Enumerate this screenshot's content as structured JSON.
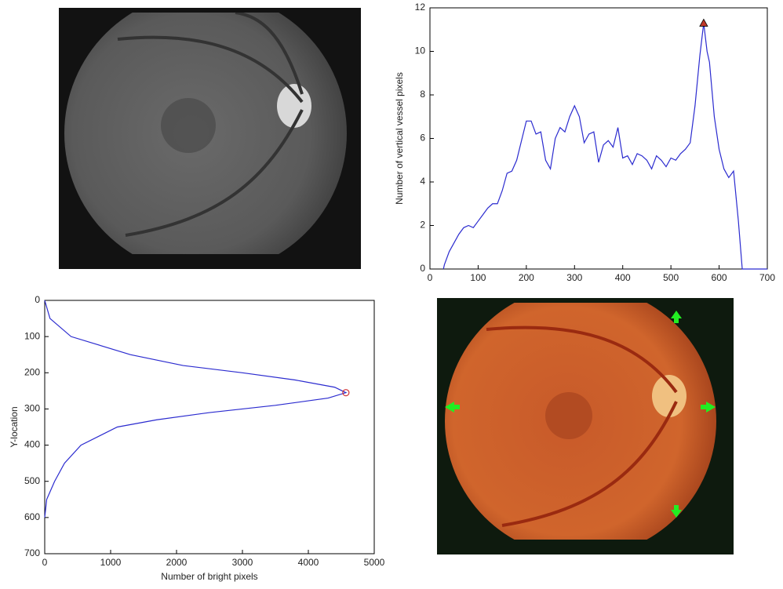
{
  "chart_data": [
    {
      "type": "line",
      "y_label": "Number of vertical vessel pixels",
      "xlim": [
        0,
        700
      ],
      "xticks": [
        0,
        100,
        200,
        300,
        400,
        500,
        600,
        700
      ],
      "ylim": [
        0,
        12
      ],
      "yticks": [
        0,
        2,
        4,
        6,
        8,
        10,
        12
      ],
      "series": [
        {
          "color": "#2b2bcf",
          "x": [
            28,
            30,
            40,
            50,
            60,
            70,
            80,
            90,
            100,
            110,
            120,
            130,
            140,
            150,
            160,
            170,
            180,
            190,
            200,
            210,
            220,
            230,
            240,
            250,
            260,
            270,
            280,
            290,
            300,
            310,
            320,
            330,
            340,
            350,
            360,
            370,
            380,
            390,
            400,
            410,
            420,
            430,
            440,
            450,
            460,
            470,
            480,
            490,
            500,
            510,
            520,
            530,
            540,
            550,
            560,
            568,
            575,
            580,
            590,
            600,
            610,
            620,
            630,
            640,
            648,
            660,
            700
          ],
          "values": [
            0,
            0.2,
            0.8,
            1.2,
            1.6,
            1.9,
            2.0,
            1.9,
            2.2,
            2.5,
            2.8,
            3.0,
            3.0,
            3.6,
            4.4,
            4.5,
            5.0,
            5.9,
            6.8,
            6.8,
            6.2,
            6.3,
            5.0,
            4.6,
            6.0,
            6.5,
            6.3,
            7.0,
            7.5,
            7.0,
            5.8,
            6.2,
            6.3,
            4.9,
            5.7,
            5.9,
            5.6,
            6.5,
            5.1,
            5.2,
            4.8,
            5.3,
            5.2,
            5.0,
            4.6,
            5.2,
            5.0,
            4.7,
            5.1,
            5.0,
            5.3,
            5.5,
            5.8,
            7.5,
            9.8,
            11.3,
            10.0,
            9.5,
            7.0,
            5.5,
            4.6,
            4.2,
            4.5,
            2.2,
            0,
            0,
            0
          ]
        }
      ],
      "marker": {
        "shape": "triangle",
        "x": 568,
        "y": 11.3,
        "color": "#c0392b"
      }
    },
    {
      "type": "line",
      "x_label": "Number of bright pixels",
      "y_label": "Y-location",
      "xlim": [
        0,
        5000
      ],
      "xticks": [
        0,
        1000,
        2000,
        3000,
        4000,
        5000
      ],
      "ylim": [
        0,
        700
      ],
      "yticks": [
        0,
        100,
        200,
        300,
        400,
        500,
        600,
        700
      ],
      "y_inverted": true,
      "series": [
        {
          "color": "#2b2bcf",
          "x": [
            0,
            80,
            400,
            1300,
            2100,
            3000,
            3800,
            4400,
            4570,
            4300,
            3500,
            2500,
            1700,
            1100,
            550,
            300,
            150,
            30,
            0
          ],
          "values": [
            0,
            50,
            100,
            150,
            180,
            200,
            220,
            240,
            255,
            270,
            290,
            310,
            330,
            350,
            400,
            450,
            500,
            550,
            600
          ]
        }
      ],
      "marker": {
        "shape": "circle",
        "x": 4570,
        "y": 255,
        "color": "#d03030"
      }
    }
  ]
}
